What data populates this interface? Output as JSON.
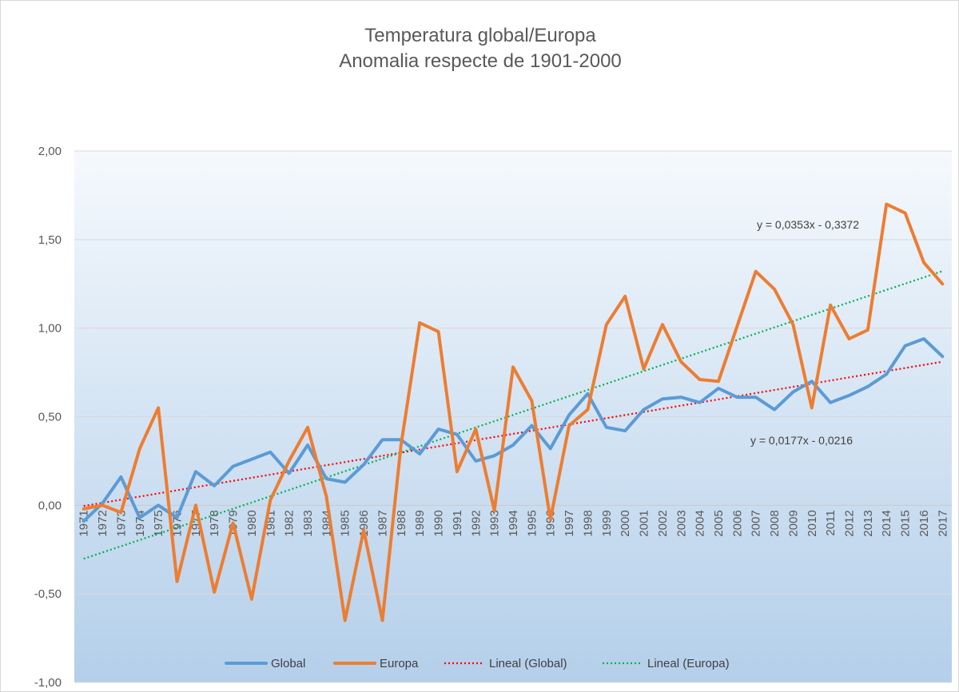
{
  "chart_data": {
    "type": "line",
    "title": "Temperatura global/Europa",
    "subtitle": "Anomalia respecte de 1901-2000",
    "xlabel": "",
    "ylabel": "",
    "ylim": [
      -1.0,
      2.0
    ],
    "yticks": [
      "-1,00",
      "-0,50",
      "0,00",
      "0,50",
      "1,00",
      "1,50",
      "2,00"
    ],
    "ytick_values": [
      -1.0,
      -0.5,
      0.0,
      0.5,
      1.0,
      1.5,
      2.0
    ],
    "grid": true,
    "legend_position": "bottom",
    "categories": [
      "1971",
      "1972",
      "1973",
      "1974",
      "1975",
      "1976",
      "1977",
      "1978",
      "1979",
      "1980",
      "1981",
      "1982",
      "1983",
      "1984",
      "1985",
      "1986",
      "1987",
      "1988",
      "1989",
      "1990",
      "1991",
      "1992",
      "1993",
      "1994",
      "1995",
      "1996",
      "1997",
      "1998",
      "1999",
      "2000",
      "2001",
      "2002",
      "2003",
      "2004",
      "2005",
      "2006",
      "2007",
      "2008",
      "2009",
      "2010",
      "2011",
      "2012",
      "2013",
      "2014",
      "2015",
      "2016",
      "2017"
    ],
    "series": [
      {
        "name": "Global",
        "color": "#5b9bd5",
        "values": [
          -0.09,
          0.01,
          0.16,
          -0.07,
          0.0,
          -0.07,
          0.19,
          0.11,
          0.22,
          0.26,
          0.3,
          0.18,
          0.34,
          0.15,
          0.13,
          0.23,
          0.37,
          0.37,
          0.29,
          0.43,
          0.4,
          0.25,
          0.28,
          0.34,
          0.45,
          0.32,
          0.51,
          0.63,
          0.44,
          0.42,
          0.54,
          0.6,
          0.61,
          0.58,
          0.66,
          0.61,
          0.61,
          0.54,
          0.64,
          0.7,
          0.58,
          0.62,
          0.67,
          0.74,
          0.9,
          0.94,
          0.84
        ]
      },
      {
        "name": "Europa",
        "color": "#ed7d31",
        "values": [
          -0.02,
          0.0,
          -0.04,
          0.32,
          0.55,
          -0.43,
          0.0,
          -0.49,
          -0.1,
          -0.53,
          0.03,
          0.25,
          0.44,
          0.05,
          -0.65,
          -0.14,
          -0.65,
          0.34,
          1.03,
          0.98,
          0.19,
          0.43,
          -0.03,
          0.78,
          0.59,
          -0.08,
          0.45,
          0.54,
          1.02,
          1.18,
          0.77,
          1.02,
          0.81,
          0.71,
          0.7,
          1.01,
          1.32,
          1.22,
          1.02,
          0.55,
          1.13,
          0.94,
          0.99,
          1.7,
          1.65,
          1.37,
          1.25
        ]
      }
    ],
    "trendlines": [
      {
        "name": "Lineal  (Global)",
        "color": "#ff0000",
        "slope": 0.0177,
        "intercept": -0.0216,
        "equation": "y = 0,0177x - 0,0216"
      },
      {
        "name": "Lineal  (Europa)",
        "color": "#00b050",
        "slope": 0.0353,
        "intercept": -0.3372,
        "equation": "y = 0,0353x - 0,3372"
      }
    ]
  }
}
